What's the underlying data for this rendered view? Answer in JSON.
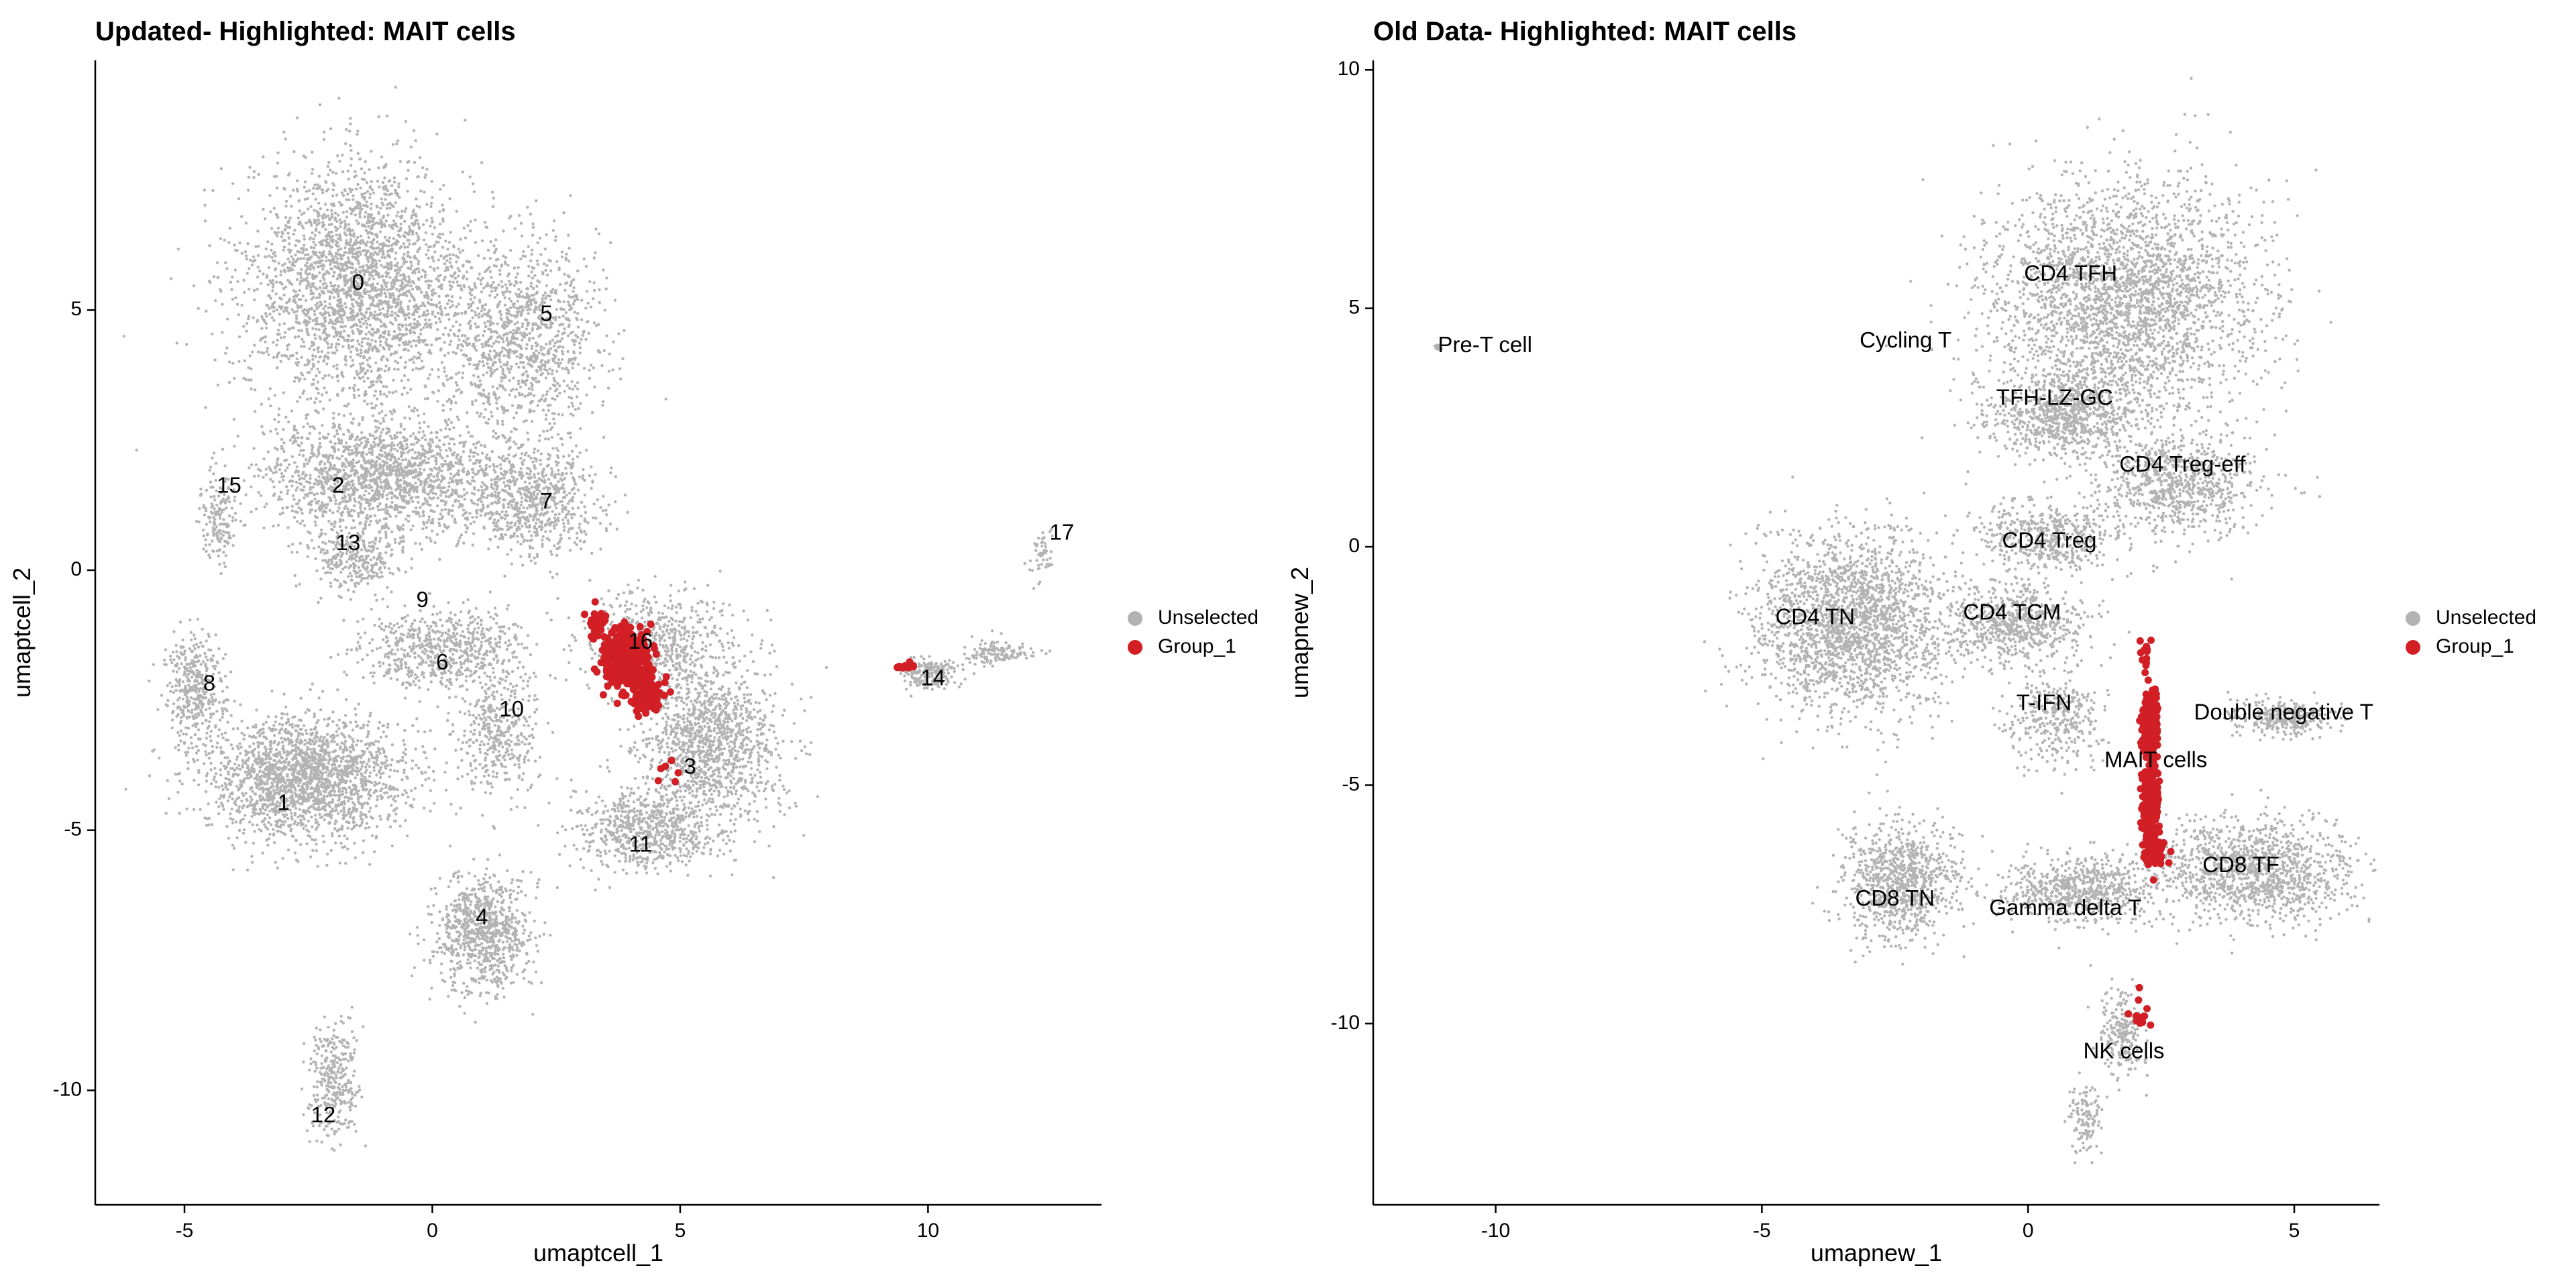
{
  "chart_data": [
    {
      "type": "scatter",
      "title": "Updated- Highlighted: MAIT cells",
      "xlabel": "umaptcell_1",
      "ylabel": "umaptcell_2",
      "xlim": [
        -6.8,
        13.5
      ],
      "ylim": [
        -12.2,
        9.8
      ],
      "x_ticks": [
        -5,
        0,
        5,
        10
      ],
      "y_ticks": [
        -10,
        -5,
        0,
        5
      ],
      "grid": false,
      "legend": {
        "placement": "right",
        "entries": [
          {
            "label": "Unselected",
            "color": "#b3b3b3"
          },
          {
            "label": "Group_1",
            "color": "#d11f25"
          }
        ]
      },
      "series": [
        {
          "name": "Unselected",
          "color": "#b3b3b3",
          "clouds": [
            {
              "x": -1.5,
              "y": 5.5,
              "sx": 1.9,
              "sy": 1.9,
              "n": 2600
            },
            {
              "x": 1.8,
              "y": 4.5,
              "sx": 1.3,
              "sy": 1.5,
              "n": 1100
            },
            {
              "x": -1.0,
              "y": 1.8,
              "sx": 2.0,
              "sy": 0.9,
              "n": 1700
            },
            {
              "x": 2.0,
              "y": 1.3,
              "sx": 1.1,
              "sy": 0.9,
              "n": 700
            },
            {
              "x": -4.3,
              "y": 1.0,
              "sx": 0.3,
              "sy": 0.7,
              "n": 160
            },
            {
              "x": -1.6,
              "y": 0.2,
              "sx": 0.8,
              "sy": 0.5,
              "n": 300
            },
            {
              "x": 0.2,
              "y": -1.5,
              "sx": 1.4,
              "sy": 0.6,
              "n": 650
            },
            {
              "x": -4.8,
              "y": -2.3,
              "sx": 0.5,
              "sy": 0.9,
              "n": 380
            },
            {
              "x": -2.6,
              "y": -4.0,
              "sx": 1.7,
              "sy": 1.0,
              "n": 2000
            },
            {
              "x": 1.3,
              "y": -3.2,
              "sx": 0.7,
              "sy": 0.9,
              "n": 380
            },
            {
              "x": 5.6,
              "y": -3.4,
              "sx": 1.2,
              "sy": 1.3,
              "n": 1300
            },
            {
              "x": 4.3,
              "y": -5.0,
              "sx": 1.2,
              "sy": 0.6,
              "n": 650
            },
            {
              "x": 4.5,
              "y": -1.4,
              "sx": 1.2,
              "sy": 0.8,
              "n": 600
            },
            {
              "x": 1.0,
              "y": -7.0,
              "sx": 0.8,
              "sy": 0.9,
              "n": 850
            },
            {
              "x": -2.0,
              "y": -9.8,
              "sx": 0.4,
              "sy": 1.0,
              "n": 320
            },
            {
              "x": 10.0,
              "y": -2.0,
              "sx": 0.5,
              "sy": 0.25,
              "n": 200
            },
            {
              "x": 11.4,
              "y": -1.6,
              "sx": 0.6,
              "sy": 0.2,
              "n": 130
            },
            {
              "x": 12.3,
              "y": 0.3,
              "sx": 0.2,
              "sy": 0.35,
              "n": 50
            }
          ]
        },
        {
          "name": "Group_1",
          "color": "#d11f25",
          "clouds": [
            {
              "x": 3.9,
              "y": -1.7,
              "sx": 0.35,
              "sy": 0.45,
              "n": 420
            },
            {
              "x": 4.3,
              "y": -2.4,
              "sx": 0.25,
              "sy": 0.35,
              "n": 120
            },
            {
              "x": 3.3,
              "y": -1.0,
              "sx": 0.2,
              "sy": 0.25,
              "n": 30
            },
            {
              "x": 4.7,
              "y": -3.8,
              "sx": 0.15,
              "sy": 0.25,
              "n": 6
            },
            {
              "x": 9.5,
              "y": -1.85,
              "sx": 0.3,
              "sy": 0.05,
              "n": 12
            }
          ]
        }
      ],
      "cluster_labels": [
        {
          "label": "0",
          "x": -1.5,
          "y": 5.5
        },
        {
          "label": "5",
          "x": 2.3,
          "y": 4.9
        },
        {
          "label": "15",
          "x": -4.1,
          "y": 1.6
        },
        {
          "label": "2",
          "x": -1.9,
          "y": 1.6
        },
        {
          "label": "7",
          "x": 2.3,
          "y": 1.3
        },
        {
          "label": "13",
          "x": -1.7,
          "y": 0.5
        },
        {
          "label": "9",
          "x": -0.2,
          "y": -0.6
        },
        {
          "label": "16",
          "x": 4.2,
          "y": -1.4
        },
        {
          "label": "6",
          "x": 0.2,
          "y": -1.8
        },
        {
          "label": "8",
          "x": -4.5,
          "y": -2.2
        },
        {
          "label": "10",
          "x": 1.6,
          "y": -2.7
        },
        {
          "label": "14",
          "x": 10.1,
          "y": -2.1
        },
        {
          "label": "17",
          "x": 12.7,
          "y": 0.7
        },
        {
          "label": "3",
          "x": 5.2,
          "y": -3.8
        },
        {
          "label": "1",
          "x": -3.0,
          "y": -4.5
        },
        {
          "label": "11",
          "x": 4.2,
          "y": -5.3
        },
        {
          "label": "4",
          "x": 1.0,
          "y": -6.7
        },
        {
          "label": "12",
          "x": -2.2,
          "y": -10.5
        }
      ]
    },
    {
      "type": "scatter",
      "title": "Old Data- Highlighted: MAIT cells",
      "xlabel": "umapnew_1",
      "ylabel": "umapnew_2",
      "xlim": [
        -12.3,
        6.6
      ],
      "ylim": [
        -13.8,
        10.2
      ],
      "x_ticks": [
        -10,
        -5,
        0,
        5
      ],
      "y_ticks": [
        -10,
        -5,
        0,
        5,
        10
      ],
      "grid": false,
      "legend": {
        "placement": "right",
        "entries": [
          {
            "label": "Unselected",
            "color": "#b3b3b3"
          },
          {
            "label": "Group_1",
            "color": "#d11f25"
          }
        ]
      },
      "series": [
        {
          "name": "Unselected",
          "color": "#b3b3b3",
          "clouds": [
            {
              "x": 1.8,
              "y": 5.2,
              "sx": 2.1,
              "sy": 2.0,
              "n": 2800
            },
            {
              "x": 0.8,
              "y": 2.8,
              "sx": 1.2,
              "sy": 0.8,
              "n": 900
            },
            {
              "x": 2.8,
              "y": 1.3,
              "sx": 1.2,
              "sy": 0.9,
              "n": 800
            },
            {
              "x": 0.4,
              "y": 0.2,
              "sx": 1.1,
              "sy": 0.6,
              "n": 500
            },
            {
              "x": -3.3,
              "y": -1.6,
              "sx": 1.5,
              "sy": 1.5,
              "n": 2200
            },
            {
              "x": -0.2,
              "y": -1.6,
              "sx": 1.0,
              "sy": 0.7,
              "n": 650
            },
            {
              "x": 0.5,
              "y": -3.6,
              "sx": 0.7,
              "sy": 0.8,
              "n": 350
            },
            {
              "x": 4.8,
              "y": -3.6,
              "sx": 0.8,
              "sy": 0.3,
              "n": 320
            },
            {
              "x": 4.3,
              "y": -6.8,
              "sx": 1.5,
              "sy": 0.9,
              "n": 1200
            },
            {
              "x": 1.0,
              "y": -7.2,
              "sx": 1.3,
              "sy": 0.6,
              "n": 750
            },
            {
              "x": -2.4,
              "y": -7.0,
              "sx": 0.9,
              "sy": 1.0,
              "n": 900
            },
            {
              "x": 1.8,
              "y": -10.2,
              "sx": 0.35,
              "sy": 0.8,
              "n": 220
            },
            {
              "x": 1.1,
              "y": -12.0,
              "sx": 0.3,
              "sy": 0.6,
              "n": 120
            },
            {
              "x": -11.1,
              "y": 4.2,
              "sx": 0.06,
              "sy": 0.05,
              "n": 25
            }
          ]
        },
        {
          "name": "Group_1",
          "color": "#d11f25",
          "clouds": [
            {
              "x": 2.3,
              "y": -3.7,
              "sx": 0.12,
              "sy": 0.6,
              "n": 240
            },
            {
              "x": 2.3,
              "y": -5.4,
              "sx": 0.12,
              "sy": 0.8,
              "n": 220
            },
            {
              "x": 2.4,
              "y": -6.4,
              "sx": 0.2,
              "sy": 0.25,
              "n": 60
            },
            {
              "x": 2.2,
              "y": -2.3,
              "sx": 0.12,
              "sy": 0.3,
              "n": 15
            },
            {
              "x": 2.1,
              "y": -9.8,
              "sx": 0.15,
              "sy": 0.35,
              "n": 12
            }
          ]
        }
      ],
      "cluster_labels": [
        {
          "label": "CD4 TFH",
          "x": 0.8,
          "y": 5.7
        },
        {
          "label": "Pre-T cell",
          "x": -10.2,
          "y": 4.2
        },
        {
          "label": "Cycling T",
          "x": -2.3,
          "y": 4.3
        },
        {
          "label": "TFH-LZ-GC",
          "x": 0.5,
          "y": 3.1
        },
        {
          "label": "CD4 Treg-eff",
          "x": 2.9,
          "y": 1.7
        },
        {
          "label": "CD4 Treg",
          "x": 0.4,
          "y": 0.1
        },
        {
          "label": "CD4 TN",
          "x": -4.0,
          "y": -1.5
        },
        {
          "label": "CD4 TCM",
          "x": -0.3,
          "y": -1.4
        },
        {
          "label": "T-IFN",
          "x": 0.3,
          "y": -3.3
        },
        {
          "label": "Double negative T",
          "x": 4.8,
          "y": -3.5
        },
        {
          "label": "MAIT cells",
          "x": 2.4,
          "y": -4.5
        },
        {
          "label": "CD8 TF",
          "x": 4.0,
          "y": -6.7
        },
        {
          "label": "CD8 TN",
          "x": -2.5,
          "y": -7.4
        },
        {
          "label": "Gamma delta T",
          "x": 0.7,
          "y": -7.6
        },
        {
          "label": "NK cells",
          "x": 1.8,
          "y": -10.6
        }
      ]
    }
  ]
}
